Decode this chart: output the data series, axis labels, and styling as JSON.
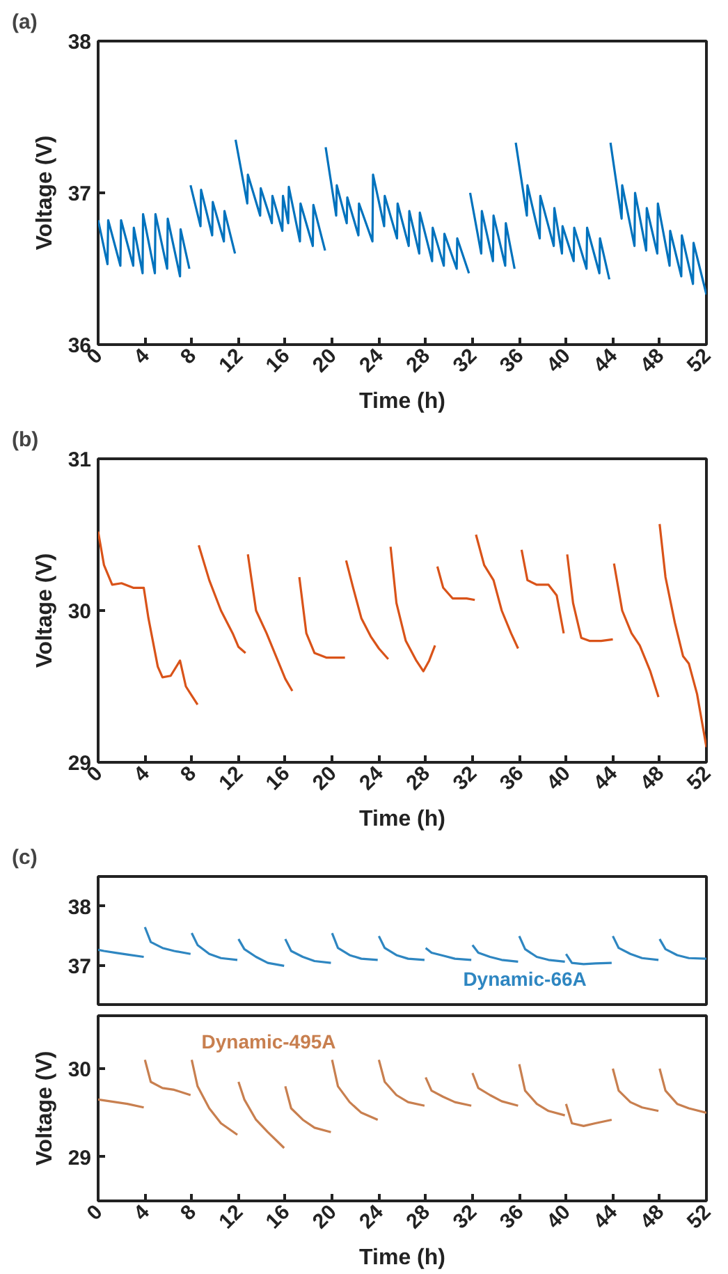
{
  "chart_data": [
    {
      "type": "line",
      "title": "(a)",
      "xlabel": "Time (h)",
      "ylabel": "Voltage (V)",
      "xlim": [
        0,
        52
      ],
      "ylim": [
        36,
        38
      ],
      "xticks": [
        0,
        4,
        8,
        12,
        16,
        20,
        24,
        28,
        32,
        36,
        40,
        44,
        48,
        52
      ],
      "yticks": [
        36,
        37,
        38
      ],
      "x": [
        0,
        0.8,
        0.86,
        1.9,
        1.96,
        3.0,
        3.05,
        3.8,
        3.84,
        4.85,
        4.9,
        5.9,
        5.95,
        7.0,
        7.05,
        7.8,
        7.85,
        7.9,
        8.75,
        8.8,
        9.75,
        9.8,
        10.75,
        10.8,
        11.7,
        11.72,
        11.75,
        12.75,
        12.8,
        13.85,
        13.9,
        14.85,
        14.9,
        15.75,
        15.8,
        16.25,
        16.3,
        17.25,
        17.3,
        18.35,
        18.4,
        19.4,
        19.42,
        19.45,
        20.35,
        20.4,
        21.25,
        21.3,
        22.25,
        22.3,
        23.45,
        23.5,
        24.45,
        24.5,
        25.55,
        25.6,
        26.55,
        26.6,
        27.45,
        27.5,
        28.55,
        28.6,
        29.55,
        29.6,
        30.65,
        30.7,
        31.7,
        31.75,
        31.8,
        32.75,
        32.8,
        33.75,
        33.8,
        34.8,
        34.85,
        35.6,
        35.65,
        35.7,
        36.65,
        36.7,
        37.75,
        37.8,
        38.95,
        39.0,
        39.65,
        39.7,
        40.65,
        40.7,
        41.75,
        41.8,
        42.85,
        42.9,
        43.7,
        43.75,
        43.8,
        44.75,
        44.8,
        45.85,
        45.9,
        46.85,
        46.9,
        47.8,
        47.85,
        48.85,
        48.9,
        49.85,
        49.9,
        50.85,
        50.9,
        52
      ],
      "series": [
        {
          "color": "#0072bd",
          "values": [
            36.82,
            36.53,
            36.82,
            36.52,
            36.82,
            36.52,
            36.77,
            36.47,
            36.86,
            36.47,
            36.86,
            36.5,
            36.83,
            36.45,
            36.76,
            36.5,
            null,
            37.05,
            36.78,
            37.02,
            36.72,
            36.94,
            36.68,
            36.88,
            36.6,
            null,
            37.35,
            36.93,
            37.12,
            36.85,
            37.03,
            36.8,
            36.98,
            36.75,
            36.98,
            36.8,
            37.04,
            36.68,
            36.93,
            36.65,
            36.92,
            36.62,
            null,
            37.3,
            36.85,
            37.05,
            36.8,
            36.97,
            36.72,
            36.93,
            36.68,
            37.12,
            36.78,
            36.98,
            36.7,
            36.93,
            36.65,
            36.88,
            36.6,
            36.87,
            36.55,
            36.77,
            36.52,
            36.73,
            36.5,
            36.7,
            36.47,
            null,
            37.0,
            36.6,
            36.88,
            36.55,
            36.85,
            36.52,
            36.8,
            36.5,
            null,
            37.33,
            36.85,
            37.05,
            36.7,
            36.98,
            36.65,
            36.9,
            36.6,
            36.78,
            36.55,
            36.77,
            36.5,
            36.77,
            36.47,
            36.7,
            36.43,
            null,
            37.33,
            36.83,
            37.05,
            36.65,
            37.0,
            36.62,
            36.9,
            36.6,
            36.93,
            36.52,
            36.75,
            36.45,
            36.72,
            36.4,
            36.67,
            36.33
          ]
        }
      ]
    },
    {
      "type": "line",
      "title": "(b)",
      "xlabel": "Time (h)",
      "ylabel": "Voltage (V)",
      "xlim": [
        0,
        52
      ],
      "ylim": [
        29,
        31
      ],
      "xticks": [
        0,
        4,
        8,
        12,
        16,
        20,
        24,
        28,
        32,
        36,
        40,
        44,
        48,
        52
      ],
      "yticks": [
        29,
        30,
        31
      ],
      "x": [
        0,
        0.5,
        1.2,
        2,
        3,
        3.9,
        4.3,
        5.1,
        5.5,
        6.2,
        7.0,
        7.5,
        8,
        8.5,
        8.55,
        8.6,
        9.5,
        10.5,
        11.5,
        12.0,
        12.6,
        12.7,
        12.8,
        13.5,
        14.4,
        15.2,
        16,
        16.6,
        16.9,
        17.2,
        17.8,
        18.5,
        19.5,
        20.5,
        21.1,
        21.15,
        21.2,
        21.8,
        22.5,
        23.3,
        24.0,
        24.8,
        24.9,
        25.0,
        25.5,
        26.3,
        27.2,
        27.8,
        28.3,
        28.8,
        28.9,
        29.0,
        29.5,
        30.3,
        31.5,
        32.2,
        32.25,
        32.3,
        33,
        33.8,
        34.5,
        35.3,
        35.9,
        36.0,
        36.2,
        36.7,
        37.5,
        38.5,
        39.2,
        39.8,
        39.9,
        40.1,
        40.6,
        41.3,
        42,
        43,
        44,
        44.05,
        44.1,
        44.8,
        45.6,
        46.3,
        47.2,
        47.9,
        47.95,
        48.0,
        48.5,
        49.3,
        50,
        50.5,
        51.2,
        52
      ],
      "series": [
        {
          "color": "#d95319",
          "values": [
            30.52,
            30.3,
            30.17,
            30.18,
            30.15,
            30.15,
            29.95,
            29.63,
            29.56,
            29.57,
            29.67,
            29.5,
            29.44,
            29.38,
            null,
            30.43,
            30.2,
            30.0,
            29.85,
            29.76,
            29.72,
            null,
            30.37,
            30.0,
            29.85,
            29.7,
            29.55,
            29.47,
            null,
            30.22,
            29.85,
            29.72,
            29.69,
            29.69,
            29.69,
            null,
            30.33,
            30.15,
            29.95,
            29.83,
            29.75,
            29.68,
            null,
            30.42,
            30.05,
            29.8,
            29.67,
            29.6,
            29.67,
            29.77,
            null,
            30.29,
            30.15,
            30.08,
            30.08,
            30.07,
            null,
            30.5,
            30.3,
            30.2,
            30.0,
            29.85,
            29.75,
            null,
            30.4,
            30.2,
            30.17,
            30.17,
            30.1,
            29.85,
            null,
            30.37,
            30.05,
            29.82,
            29.8,
            29.8,
            29.81,
            null,
            30.31,
            30.0,
            29.85,
            29.77,
            29.6,
            29.43,
            null,
            30.57,
            30.22,
            29.92,
            29.7,
            29.65,
            29.45,
            29.1
          ]
        }
      ]
    },
    {
      "type": "line",
      "title": "(c)",
      "xlim": [
        0,
        52
      ],
      "ylim": [
        36.35,
        38.5
      ],
      "yticks": [
        37,
        38
      ],
      "tick_labels": "y",
      "x": [
        0,
        0.5,
        1.5,
        2.5,
        3.9,
        3.95,
        4,
        4.5,
        5.5,
        6.5,
        7.9,
        7.95,
        8,
        8.5,
        9.5,
        10.5,
        11.9,
        11.95,
        12,
        12.5,
        13.5,
        14.5,
        15.9,
        15.95,
        16,
        16.5,
        17.5,
        18.5,
        19.9,
        19.95,
        20,
        20.5,
        21.5,
        22.5,
        23.9,
        23.95,
        24,
        24.5,
        25.5,
        26.5,
        27.9,
        27.95,
        28,
        28.5,
        29.5,
        30.5,
        31.9,
        31.95,
        32,
        32.5,
        33.5,
        34.5,
        35.9,
        35.95,
        36,
        36.5,
        37.5,
        38.5,
        39.9,
        39.95,
        40,
        40.5,
        41.5,
        42.5,
        43.9,
        43.95,
        44,
        44.5,
        45.5,
        46.5,
        47.9,
        47.95,
        48,
        48.5,
        49.5,
        50.5,
        52
      ],
      "series": [
        {
          "name": "Dynamic-66A",
          "color": "#2e86c1",
          "values": [
            37.27,
            37.25,
            37.22,
            37.19,
            37.15,
            null,
            37.65,
            37.4,
            37.3,
            37.25,
            37.2,
            null,
            37.55,
            37.35,
            37.2,
            37.13,
            37.1,
            null,
            37.45,
            37.28,
            37.15,
            37.05,
            37.0,
            null,
            37.45,
            37.25,
            37.15,
            37.08,
            37.05,
            null,
            37.55,
            37.3,
            37.18,
            37.12,
            37.1,
            null,
            37.5,
            37.3,
            37.18,
            37.12,
            37.1,
            null,
            37.3,
            37.22,
            37.17,
            37.12,
            37.1,
            null,
            37.35,
            37.22,
            37.15,
            37.1,
            37.07,
            null,
            37.5,
            37.28,
            37.15,
            37.1,
            37.07,
            null,
            37.2,
            37.05,
            37.03,
            37.04,
            37.05,
            null,
            37.5,
            37.3,
            37.2,
            37.13,
            37.1,
            null,
            37.45,
            37.28,
            37.18,
            37.13,
            37.12
          ]
        }
      ]
    },
    {
      "type": "line",
      "xlabel": "Time (h)",
      "ylabel": "Voltage (V)",
      "xlim": [
        0,
        52
      ],
      "ylim": [
        28.5,
        30.6
      ],
      "xticks": [
        0,
        4,
        8,
        12,
        16,
        20,
        24,
        28,
        32,
        36,
        40,
        44,
        48,
        52
      ],
      "yticks": [
        29,
        30
      ],
      "x": [
        0,
        0.5,
        1.5,
        2.5,
        3.9,
        3.95,
        4,
        4.5,
        5.5,
        6.5,
        7.9,
        7.95,
        8,
        8.5,
        9.5,
        10.5,
        11.9,
        11.95,
        12,
        12.5,
        13.5,
        14.5,
        15.9,
        15.95,
        16,
        16.5,
        17.5,
        18.5,
        19.9,
        19.95,
        20,
        20.5,
        21.5,
        22.5,
        23.9,
        23.95,
        24,
        24.5,
        25.5,
        26.5,
        27.9,
        27.95,
        28,
        28.5,
        29.5,
        30.5,
        31.9,
        31.95,
        32,
        32.5,
        33.5,
        34.5,
        35.9,
        35.95,
        36,
        36.5,
        37.5,
        38.5,
        39.9,
        39.95,
        40,
        40.5,
        41.5,
        42.5,
        43.9,
        43.95,
        44,
        44.5,
        45.5,
        46.5,
        47.9,
        47.95,
        48,
        48.5,
        49.5,
        50.5,
        52
      ],
      "series": [
        {
          "name": "Dynamic-495A",
          "color": "#c87f4f",
          "values": [
            29.65,
            29.64,
            29.62,
            29.6,
            29.56,
            null,
            30.1,
            29.85,
            29.78,
            29.76,
            29.7,
            null,
            30.1,
            29.8,
            29.55,
            29.38,
            29.25,
            null,
            29.85,
            29.65,
            29.42,
            29.28,
            29.1,
            null,
            29.8,
            29.55,
            29.42,
            29.33,
            29.28,
            null,
            30.1,
            29.8,
            29.62,
            29.5,
            29.42,
            null,
            30.1,
            29.85,
            29.7,
            29.62,
            29.58,
            null,
            29.9,
            29.75,
            29.68,
            29.62,
            29.58,
            null,
            29.95,
            29.78,
            29.7,
            29.63,
            29.58,
            null,
            30.05,
            29.75,
            29.6,
            29.52,
            29.47,
            null,
            29.6,
            29.38,
            29.35,
            29.38,
            29.42,
            null,
            30.0,
            29.75,
            29.62,
            29.56,
            29.52,
            null,
            30.0,
            29.75,
            29.6,
            29.55,
            29.5
          ]
        }
      ]
    }
  ]
}
